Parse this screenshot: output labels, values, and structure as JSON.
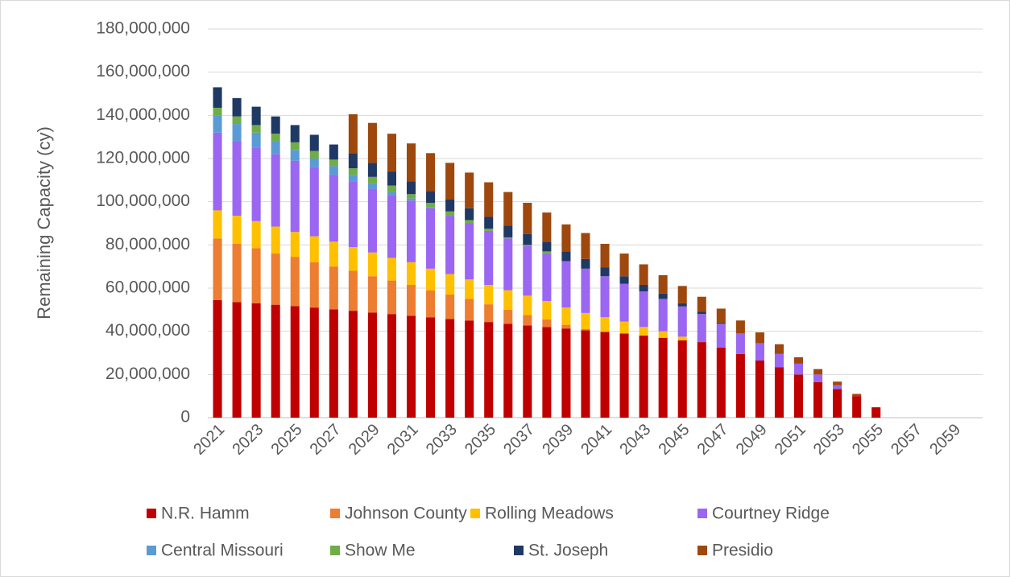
{
  "chart_data": {
    "type": "bar",
    "stacked": true,
    "y_axis_label": "Remaining Capacity (cy)",
    "categories": [
      "2021",
      null,
      "2023",
      null,
      "2025",
      null,
      "2027",
      null,
      "2029",
      null,
      "2031",
      null,
      "2033",
      null,
      "2035",
      null,
      "2037",
      null,
      "2039",
      null,
      "2041",
      null,
      "2043",
      null,
      "2045",
      null,
      "2047",
      null,
      "2049",
      null,
      "2051",
      null,
      "2053",
      null,
      "2055",
      null,
      "2057",
      null,
      "2059",
      null
    ],
    "series": [
      {
        "name": "N.R. Hamm",
        "color": "#c00000",
        "values": [
          54500000,
          53500000,
          53000000,
          52300000,
          51700000,
          51000000,
          50200000,
          49500000,
          48700000,
          48000000,
          47200000,
          46500000,
          45700000,
          45000000,
          44300000,
          43500000,
          42700000,
          42000000,
          41300000,
          40500000,
          39700000,
          39000000,
          38000000,
          37000000,
          35800000,
          35000000,
          32500000,
          29500000,
          26500000,
          23300000,
          20000000,
          16500000,
          13300000,
          10000000,
          4800000,
          0,
          0,
          0,
          0,
          0
        ]
      },
      {
        "name": "Johnson County",
        "color": "#ed7d31",
        "values": [
          28500000,
          27000000,
          25500000,
          23700000,
          22800000,
          21000000,
          19800000,
          18500000,
          16800000,
          15500000,
          14300000,
          12500000,
          11300000,
          10000000,
          8200000,
          6500000,
          4800000,
          3500000,
          1700000,
          500000,
          0,
          0,
          0,
          0,
          0,
          0,
          0,
          0,
          0,
          0,
          0,
          0,
          0,
          0,
          0,
          0,
          0,
          0,
          0,
          0
        ]
      },
      {
        "name": "Rolling Meadows",
        "color": "#ffc000",
        "values": [
          13000000,
          13000000,
          12500000,
          12500000,
          11500000,
          12000000,
          11500000,
          11000000,
          11000000,
          10500000,
          10500000,
          10000000,
          9500000,
          9000000,
          9000000,
          9000000,
          9000000,
          8500000,
          8000000,
          7500000,
          6800000,
          5500000,
          4000000,
          3000000,
          1700000,
          0,
          0,
          0,
          0,
          0,
          0,
          0,
          0,
          0,
          0,
          0,
          0,
          0,
          0,
          0
        ]
      },
      {
        "name": "Courtney Ridge",
        "color": "#9a66f2",
        "values": [
          36000000,
          34500000,
          34000000,
          33500000,
          33000000,
          32000000,
          31000000,
          30500000,
          29500000,
          29000000,
          28500000,
          28000000,
          27000000,
          26000000,
          25000000,
          24000000,
          23000000,
          22000000,
          21500000,
          20500000,
          19000000,
          17500000,
          16500000,
          15000000,
          14000000,
          13000000,
          11000000,
          9500000,
          8000000,
          6200000,
          5000000,
          3500000,
          1700000,
          0,
          0,
          0,
          0,
          0,
          0,
          0
        ]
      },
      {
        "name": "Central Missouri",
        "color": "#5b9bd5",
        "values": [
          8000000,
          8000000,
          7000000,
          6000000,
          5000000,
          4000000,
          4000000,
          3000000,
          2500000,
          1500000,
          1000000,
          500000,
          0,
          0,
          0,
          0,
          0,
          0,
          0,
          0,
          0,
          0,
          0,
          0,
          0,
          0,
          0,
          0,
          0,
          0,
          0,
          0,
          0,
          0,
          0,
          0,
          0,
          0,
          0,
          0
        ]
      },
      {
        "name": "Show Me",
        "color": "#70ad47",
        "values": [
          3500000,
          3500000,
          3500000,
          3500000,
          3500000,
          3500000,
          3000000,
          3000000,
          3000000,
          3000000,
          2000000,
          2000000,
          2000000,
          1500000,
          1000000,
          500000,
          500000,
          1000000,
          0,
          0,
          0,
          0,
          0,
          0,
          0,
          0,
          0,
          0,
          0,
          0,
          0,
          0,
          0,
          0,
          0,
          0,
          0,
          0,
          0,
          0
        ]
      },
      {
        "name": "St. Joseph",
        "color": "#203864",
        "values": [
          9500000,
          8500000,
          8500000,
          8000000,
          8000000,
          7500000,
          7000000,
          7000000,
          6500000,
          6500000,
          6000000,
          5500000,
          5500000,
          5500000,
          5500000,
          5500000,
          5000000,
          4500000,
          4500000,
          4500000,
          4000000,
          3500000,
          3000000,
          2500000,
          1500000,
          1000000,
          500000,
          0,
          0,
          0,
          0,
          0,
          0,
          0,
          0,
          0,
          0,
          0,
          0,
          0
        ]
      },
      {
        "name": "Presidio",
        "color": "#9e480e",
        "values": [
          0,
          0,
          0,
          0,
          0,
          0,
          0,
          18000000,
          18500000,
          17500000,
          17500000,
          17500000,
          17000000,
          16500000,
          16000000,
          15500000,
          14500000,
          13500000,
          12500000,
          12000000,
          11000000,
          10500000,
          9500000,
          8500000,
          8000000,
          7000000,
          6500000,
          6000000,
          5000000,
          4500000,
          3000000,
          2500000,
          1700000,
          1000000,
          0,
          0,
          0,
          0,
          0,
          0
        ]
      }
    ],
    "ylim": [
      0,
      180000000
    ],
    "yticks": [
      0,
      {
        "value": 20000000,
        "label": "20,000,000"
      },
      {
        "value": 40000000,
        "label": "40,000,000"
      },
      {
        "value": 60000000,
        "label": "60,000,000"
      },
      {
        "value": 80000000,
        "label": "80,000,000"
      },
      {
        "value": 100000000,
        "label": "100,000,000"
      },
      {
        "value": 120000000,
        "label": "120,000,000"
      },
      {
        "value": 140000000,
        "label": "140,000,000"
      },
      {
        "value": 160000000,
        "label": "160,000,000"
      },
      {
        "value": 180000000,
        "label": "180,000,000"
      }
    ],
    "grid": true,
    "legend": "bottom"
  }
}
